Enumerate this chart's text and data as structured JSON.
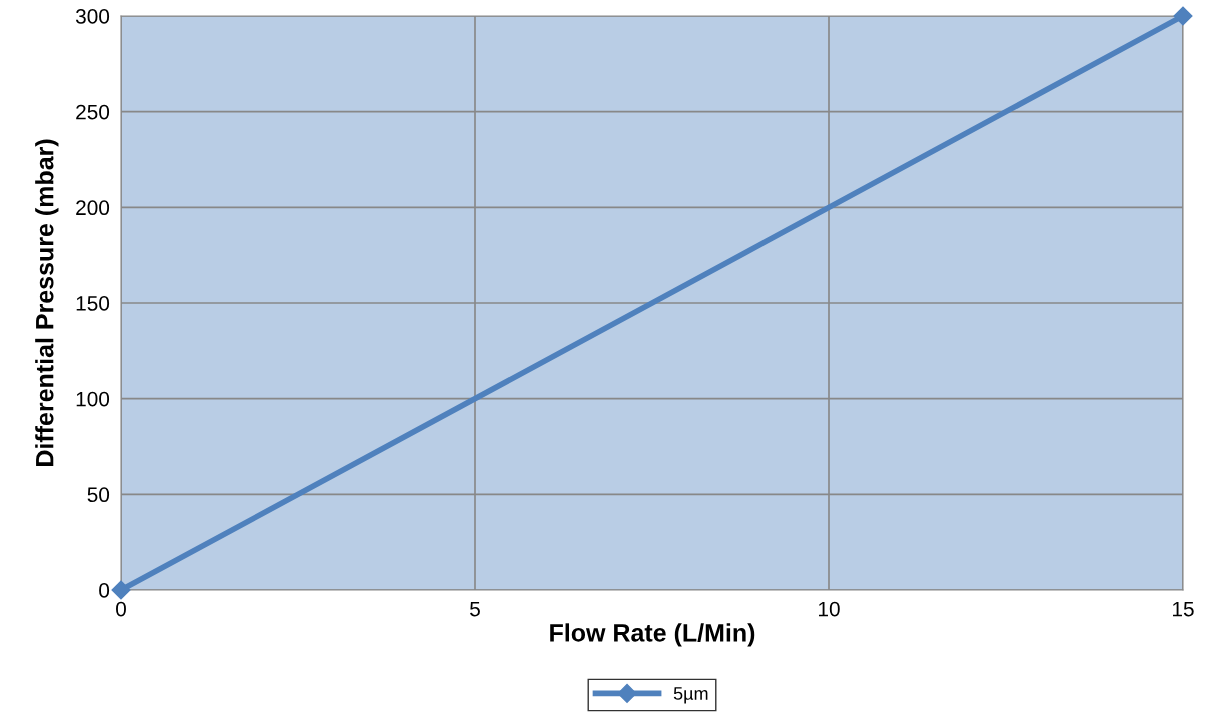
{
  "chart_data": {
    "type": "line",
    "xlabel": "Flow Rate (L/Min)",
    "ylabel": "Differential Pressure (mbar)",
    "x": [
      0,
      15
    ],
    "series": [
      {
        "name": "5µm",
        "color": "#4f81bd",
        "values": [
          0,
          300
        ]
      }
    ],
    "xlim": [
      0,
      15
    ],
    "xticks": [
      0,
      5,
      10,
      15
    ],
    "ylim": [
      0,
      300
    ],
    "yticks": [
      0,
      50,
      100,
      150,
      200,
      250,
      300
    ],
    "grid": true,
    "legend": "bottom",
    "marker": "diamond",
    "line_style": "solid"
  }
}
